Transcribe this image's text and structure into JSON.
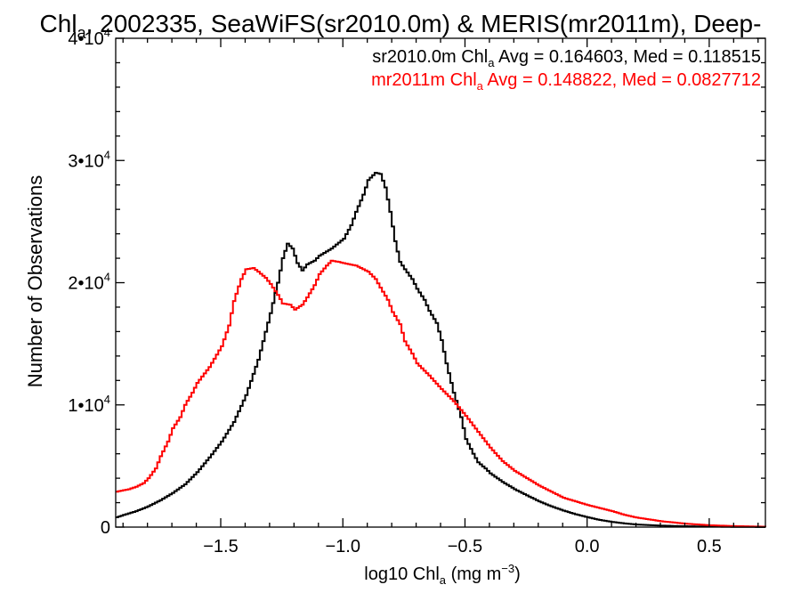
{
  "chart_data": {
    "type": "line",
    "title": {
      "prefix": "Chl",
      "sub": "a",
      "rest": ", 2002335, SeaWiFS(sr2010.0m) & MERIS(mr2011m), Deep-"
    },
    "xlabel": {
      "prefix": "log10 Chl",
      "sub": "a",
      "mid": " (mg m",
      "sup": "−3",
      "end": ")"
    },
    "ylabel": "Number of Observations",
    "xlim": [
      -1.93,
      0.73
    ],
    "ylim": [
      0,
      40000
    ],
    "x_ticks": [
      {
        "value": -1.5,
        "label": "−1.5"
      },
      {
        "value": -1.0,
        "label": "−1.0"
      },
      {
        "value": -0.5,
        "label": "−0.5"
      },
      {
        "value": 0.0,
        "label": "0.0"
      },
      {
        "value": 0.5,
        "label": "0.5"
      }
    ],
    "y_ticks": [
      {
        "value": 0,
        "base": "0",
        "exp": ""
      },
      {
        "value": 10000,
        "base": "1•10",
        "exp": "4"
      },
      {
        "value": 20000,
        "base": "2•10",
        "exp": "4"
      },
      {
        "value": 30000,
        "base": "3•10",
        "exp": "4"
      },
      {
        "value": 40000,
        "base": "4•10",
        "exp": "4"
      }
    ],
    "bin_width": 0.01,
    "series": [
      {
        "name": "sr2010.0m",
        "color": "#000000",
        "stats": {
          "prefix": "sr2010.0m Chl",
          "sub": "a",
          "rest": " Avg = 0.164603, Med = 0.118515"
        },
        "x": [
          -1.93,
          -1.9,
          -1.85,
          -1.8,
          -1.75,
          -1.7,
          -1.65,
          -1.6,
          -1.55,
          -1.5,
          -1.45,
          -1.4,
          -1.35,
          -1.3,
          -1.27,
          -1.25,
          -1.23,
          -1.21,
          -1.19,
          -1.17,
          -1.15,
          -1.12,
          -1.1,
          -1.05,
          -1.0,
          -0.97,
          -0.95,
          -0.92,
          -0.9,
          -0.87,
          -0.85,
          -0.83,
          -0.81,
          -0.79,
          -0.77,
          -0.75,
          -0.72,
          -0.7,
          -0.67,
          -0.65,
          -0.62,
          -0.6,
          -0.58,
          -0.55,
          -0.52,
          -0.5,
          -0.47,
          -0.45,
          -0.42,
          -0.4,
          -0.35,
          -0.3,
          -0.25,
          -0.2,
          -0.15,
          -0.1,
          -0.05,
          0.0,
          0.05,
          0.1,
          0.15,
          0.2,
          0.3,
          0.4,
          0.5,
          0.6,
          0.73
        ],
        "values": [
          800,
          1000,
          1300,
          1700,
          2200,
          2800,
          3500,
          4500,
          5700,
          7000,
          8600,
          10800,
          13700,
          17500,
          20000,
          22000,
          23200,
          22800,
          21600,
          21000,
          21500,
          21800,
          22200,
          22800,
          23600,
          24700,
          25800,
          27200,
          28400,
          29000,
          28900,
          27800,
          25800,
          23400,
          21700,
          21100,
          20300,
          19500,
          18600,
          17700,
          16700,
          15300,
          13400,
          11000,
          9000,
          7200,
          6000,
          5300,
          4800,
          4400,
          3700,
          3100,
          2600,
          2100,
          1700,
          1350,
          1050,
          800,
          580,
          420,
          300,
          210,
          120,
          70,
          40,
          20,
          10
        ]
      },
      {
        "name": "mr2011m",
        "color": "#ff0000",
        "stats": {
          "prefix": "mr2011m Chl",
          "sub": "a",
          "rest": " Avg = 0.148822, Med = 0.0827712"
        },
        "x": [
          -1.93,
          -1.88,
          -1.85,
          -1.82,
          -1.8,
          -1.77,
          -1.75,
          -1.72,
          -1.7,
          -1.67,
          -1.65,
          -1.62,
          -1.6,
          -1.55,
          -1.5,
          -1.47,
          -1.45,
          -1.42,
          -1.4,
          -1.37,
          -1.35,
          -1.32,
          -1.3,
          -1.27,
          -1.25,
          -1.22,
          -1.2,
          -1.17,
          -1.15,
          -1.12,
          -1.1,
          -1.07,
          -1.05,
          -1.02,
          -1.0,
          -0.95,
          -0.9,
          -0.87,
          -0.85,
          -0.82,
          -0.8,
          -0.77,
          -0.75,
          -0.72,
          -0.7,
          -0.65,
          -0.6,
          -0.55,
          -0.5,
          -0.45,
          -0.4,
          -0.35,
          -0.3,
          -0.25,
          -0.2,
          -0.15,
          -0.1,
          -0.05,
          0.0,
          0.05,
          0.1,
          0.15,
          0.2,
          0.3,
          0.4,
          0.5,
          0.6,
          0.73
        ],
        "values": [
          2900,
          3100,
          3300,
          3600,
          4000,
          4800,
          5800,
          7000,
          8100,
          9000,
          10000,
          11000,
          11800,
          13100,
          14800,
          16500,
          18500,
          20300,
          21100,
          21200,
          20900,
          20400,
          19900,
          19000,
          18300,
          18200,
          17800,
          18200,
          18800,
          19800,
          20700,
          21400,
          21800,
          21700,
          21600,
          21400,
          20900,
          20300,
          19600,
          18600,
          17600,
          16600,
          15200,
          14200,
          13400,
          12400,
          11300,
          10300,
          9100,
          7800,
          6500,
          5400,
          4600,
          4000,
          3400,
          2900,
          2400,
          2100,
          1800,
          1550,
          1300,
          1000,
          780,
          480,
          280,
          150,
          80,
          30
        ]
      }
    ]
  }
}
